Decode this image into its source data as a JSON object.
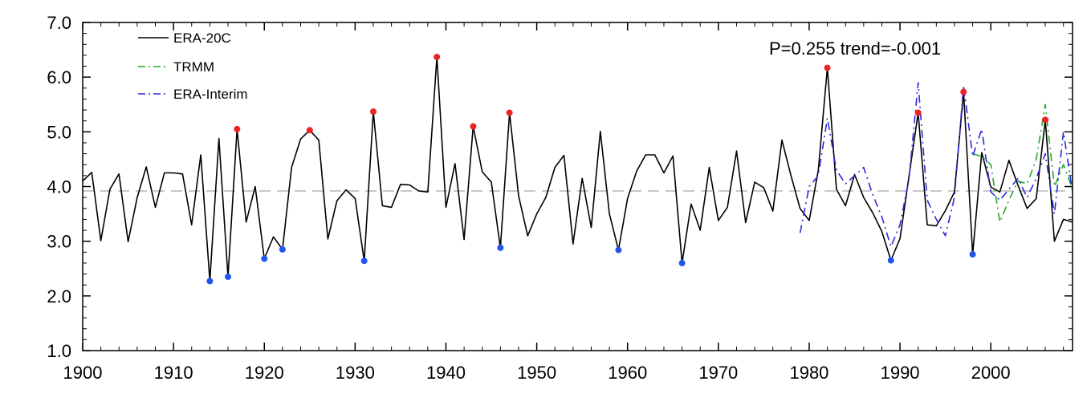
{
  "chart_data": {
    "type": "line",
    "title": "",
    "xlabel": "",
    "ylabel": "",
    "xlim": [
      1900,
      2009
    ],
    "ylim": [
      1.0,
      7.0
    ],
    "x_ticks": [
      1900,
      1910,
      1920,
      1930,
      1940,
      1950,
      1960,
      1970,
      1980,
      1990,
      2000
    ],
    "y_ticks": [
      "1.0",
      "2.0",
      "3.0",
      "4.0",
      "5.0",
      "6.0",
      "7.0"
    ],
    "mean_line": 3.92,
    "annotation": "P=0.255  trend=-0.001",
    "legend": {
      "position": "top-left"
    },
    "series": [
      {
        "name": "ERA-20C",
        "color": "#000000",
        "dash": "solid",
        "x": [
          1900,
          1901,
          1902,
          1903,
          1904,
          1905,
          1906,
          1907,
          1908,
          1909,
          1910,
          1911,
          1912,
          1913,
          1914,
          1915,
          1916,
          1917,
          1918,
          1919,
          1920,
          1921,
          1922,
          1923,
          1924,
          1925,
          1926,
          1927,
          1928,
          1929,
          1930,
          1931,
          1932,
          1933,
          1934,
          1935,
          1936,
          1937,
          1938,
          1939,
          1940,
          1941,
          1942,
          1943,
          1944,
          1945,
          1946,
          1947,
          1948,
          1949,
          1950,
          1951,
          1952,
          1953,
          1954,
          1955,
          1956,
          1957,
          1958,
          1959,
          1960,
          1961,
          1962,
          1963,
          1964,
          1965,
          1966,
          1967,
          1968,
          1969,
          1970,
          1971,
          1972,
          1973,
          1974,
          1975,
          1976,
          1977,
          1978,
          1979,
          1980,
          1981,
          1982,
          1983,
          1984,
          1985,
          1986,
          1987,
          1988,
          1989,
          1990,
          1991,
          1992,
          1993,
          1994,
          1995,
          1996,
          1997,
          1998,
          1999,
          2000,
          2001,
          2002,
          2003,
          2004,
          2005,
          2006,
          2007,
          2008,
          2009
        ],
        "y": [
          4.1,
          4.26,
          3.01,
          3.95,
          4.23,
          2.99,
          3.8,
          4.36,
          3.62,
          4.25,
          4.25,
          4.23,
          3.3,
          4.58,
          2.27,
          4.88,
          2.35,
          5.05,
          3.35,
          4.0,
          2.68,
          3.08,
          2.85,
          4.35,
          4.87,
          5.03,
          4.85,
          3.04,
          3.74,
          3.94,
          3.78,
          2.64,
          5.37,
          3.65,
          3.62,
          4.04,
          4.03,
          3.92,
          3.9,
          6.37,
          3.62,
          4.42,
          3.03,
          5.1,
          4.27,
          4.08,
          2.88,
          5.35,
          3.83,
          3.1,
          3.5,
          3.8,
          4.35,
          4.57,
          2.95,
          4.15,
          3.25,
          5.01,
          3.5,
          2.84,
          3.78,
          4.28,
          4.58,
          4.58,
          4.25,
          4.56,
          2.6,
          3.68,
          3.2,
          4.35,
          3.38,
          3.62,
          4.65,
          3.34,
          4.08,
          3.98,
          3.55,
          4.85,
          4.2,
          3.6,
          3.38,
          4.3,
          6.17,
          3.95,
          3.65,
          4.22,
          3.8,
          3.52,
          3.18,
          2.65,
          3.05,
          4.2,
          5.35,
          3.3,
          3.28,
          3.56,
          3.9,
          5.73,
          2.76,
          4.62,
          3.99,
          3.9,
          4.48,
          4.02,
          3.6,
          3.78,
          5.22,
          3.0,
          3.4,
          3.35
        ]
      },
      {
        "name": "TRMM",
        "color": "#22aa22",
        "dash": "dashdot",
        "x": [
          1998,
          1999,
          2000,
          2001,
          2002,
          2003,
          2004,
          2005,
          2006,
          2007,
          2008,
          2009
        ],
        "y": [
          4.6,
          4.55,
          4.4,
          3.35,
          3.75,
          4.1,
          4.05,
          4.5,
          5.5,
          4.0,
          4.4,
          3.95
        ]
      },
      {
        "name": "ERA-Interim",
        "color": "#2b2bdd",
        "dash": "dashdot",
        "x": [
          1979,
          1980,
          1981,
          1982,
          1983,
          1984,
          1985,
          1986,
          1987,
          1988,
          1989,
          1990,
          1991,
          1992,
          1993,
          1994,
          1995,
          1996,
          1997,
          1998,
          1999,
          2000,
          2001,
          2002,
          2003,
          2004,
          2005,
          2006,
          2007,
          2008,
          2009
        ],
        "y": [
          3.15,
          4.0,
          4.2,
          5.25,
          4.3,
          4.05,
          4.2,
          4.35,
          3.85,
          3.45,
          2.9,
          3.3,
          4.15,
          5.9,
          3.75,
          3.4,
          3.1,
          3.8,
          5.85,
          4.55,
          5.05,
          3.9,
          3.75,
          3.95,
          4.15,
          3.8,
          4.15,
          4.6,
          3.5,
          5.0,
          3.9
        ]
      }
    ],
    "highs": {
      "color": "#ee2222",
      "x": [
        1917,
        1925,
        1932,
        1939,
        1943,
        1947,
        1982,
        1992,
        1997,
        2006
      ],
      "y": [
        5.05,
        5.03,
        5.37,
        6.37,
        5.1,
        5.35,
        6.17,
        5.35,
        5.73,
        5.22
      ]
    },
    "lows": {
      "color": "#2255ee",
      "x": [
        1914,
        1916,
        1920,
        1922,
        1931,
        1946,
        1959,
        1966,
        1989,
        1998
      ],
      "y": [
        2.27,
        2.35,
        2.68,
        2.85,
        2.64,
        2.88,
        2.84,
        2.6,
        2.65,
        2.76
      ]
    }
  }
}
